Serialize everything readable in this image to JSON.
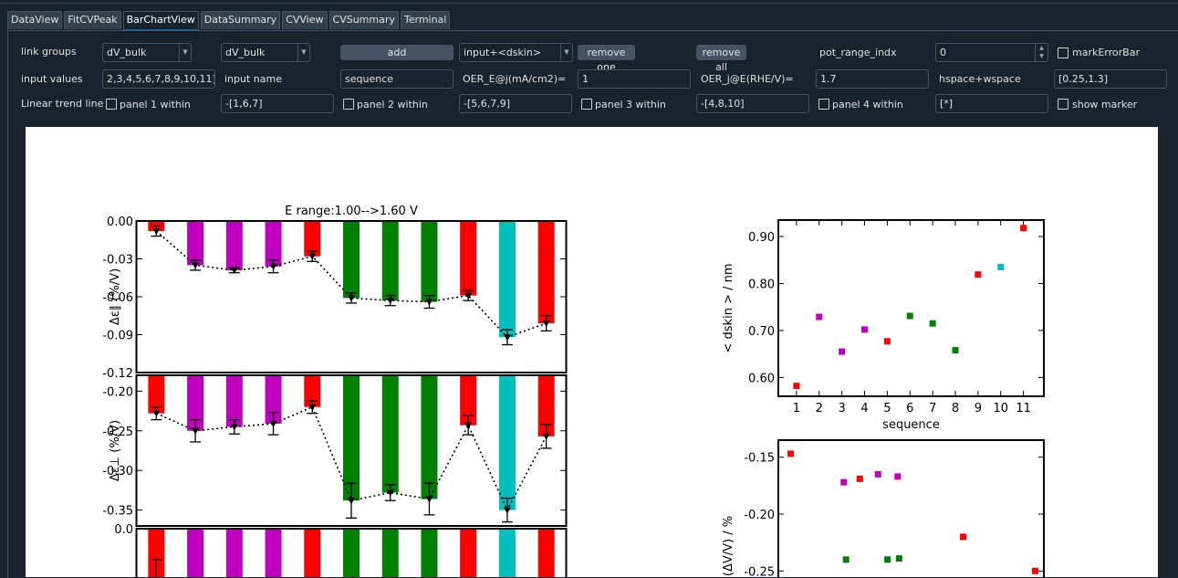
{
  "tabs": [
    {
      "label": "DataView",
      "active": false
    },
    {
      "label": "FitCVPeak",
      "active": false
    },
    {
      "label": "BarChartView",
      "active": true
    },
    {
      "label": "DataSummary",
      "active": false
    },
    {
      "label": "CVView",
      "active": false
    },
    {
      "label": "CVSummary",
      "active": false
    },
    {
      "label": "Terminal",
      "active": false
    }
  ],
  "controls": {
    "link_groups_label": "link groups",
    "link_group_1": "dV_bulk",
    "link_group_2": "dV_bulk",
    "add_button": "add",
    "input_combo": "input+<dskin>",
    "remove_one_button": "remove one",
    "remove_all_button": "remove all",
    "pot_range_label": "pot_range_indx",
    "pot_range_value": "0",
    "mark_error_bar_label": "markErrorBar",
    "input_values_label": "input values",
    "input_values": "2,3,4,5,6,7,8,9,10,11]",
    "input_name_label": "input name",
    "input_name": "sequence",
    "oer_e_label": "OER_E@j(mA/cm2)=",
    "oer_e_value": "1",
    "oer_j_label": "OER_j@E(RHE/V)=",
    "oer_j_value": "1.7",
    "hspace_label": "hspace+wspace",
    "hspace_value": "[0.25,1.3]",
    "trend_label": "Linear trend line",
    "panel1_label": "panel 1 within",
    "panel1_value": "-[1,6,7]",
    "panel2_label": "panel 2 within",
    "panel2_value": "-[5,6,7,9]",
    "panel3_label": "panel 3 within",
    "panel3_value": "-[4,8,10]",
    "panel4_label": "panel 4 within",
    "panel4_value": "[*]",
    "show_marker_label": "show marker"
  },
  "colors": {
    "red": "#ff0000",
    "magenta": "#bf00bf",
    "green": "#008000",
    "cyan": "#00bfbf",
    "bg": "#19232d"
  },
  "chart_data": [
    {
      "type": "bar",
      "title": "E range:1.00-->1.60 V",
      "ylabel": "Δε∥ (%/V)",
      "ylim": [
        -0.12,
        0.0
      ],
      "yticks": [
        "0.00",
        "-0.03",
        "-0.06",
        "-0.09",
        "-0.12"
      ],
      "colors": [
        "red",
        "magenta",
        "magenta",
        "magenta",
        "red",
        "green",
        "green",
        "green",
        "red",
        "cyan",
        "red"
      ],
      "values": [
        -0.008,
        -0.035,
        -0.039,
        -0.036,
        -0.028,
        -0.061,
        -0.063,
        -0.064,
        -0.059,
        -0.092,
        -0.081
      ],
      "errors": [
        0.004,
        0.004,
        0.002,
        0.005,
        0.004,
        0.004,
        0.004,
        0.005,
        0.004,
        0.006,
        0.006
      ]
    },
    {
      "type": "bar",
      "ylabel": "Δε⊥ (%/V)",
      "ylim": [
        -0.37,
        -0.18
      ],
      "yticks": [
        "-0.20",
        "-0.25",
        "-0.30",
        "-0.35"
      ],
      "colors": [
        "red",
        "magenta",
        "magenta",
        "magenta",
        "red",
        "green",
        "green",
        "green",
        "red",
        "cyan",
        "red"
      ],
      "values": [
        -0.228,
        -0.25,
        -0.245,
        -0.241,
        -0.22,
        -0.338,
        -0.328,
        -0.336,
        -0.243,
        -0.35,
        -0.257
      ],
      "errors": [
        0.008,
        0.014,
        0.009,
        0.014,
        0.008,
        0.022,
        0.01,
        0.02,
        0.012,
        0.015,
        0.015
      ]
    },
    {
      "type": "bar",
      "ylabel": "",
      "ylim": [
        -0.1,
        0.0
      ],
      "yticks": [
        "0.0"
      ],
      "colors": [
        "red",
        "magenta",
        "magenta",
        "magenta",
        "red",
        "green",
        "green",
        "green",
        "red",
        "cyan",
        "red"
      ],
      "values": [
        -0.1,
        -0.1,
        -0.1,
        -0.1,
        -0.1,
        -0.1,
        -0.1,
        -0.1,
        -0.1,
        -0.1,
        -0.1
      ],
      "errors": [
        0.05,
        0,
        0,
        0,
        0,
        0,
        0,
        0,
        0,
        0,
        0
      ]
    },
    {
      "type": "scatter",
      "xlabel": "sequence",
      "ylabel": "< dskin > / nm",
      "xlim": [
        0.2,
        11.9
      ],
      "ylim": [
        0.56,
        0.935
      ],
      "xticks": [
        "1",
        "2",
        "3",
        "4",
        "5",
        "6",
        "7",
        "8",
        "9",
        "10",
        "11"
      ],
      "yticks": [
        "0.60",
        "0.70",
        "0.80",
        "0.90"
      ],
      "points": [
        {
          "x": 1,
          "y": 0.582,
          "c": "red"
        },
        {
          "x": 2,
          "y": 0.729,
          "c": "magenta"
        },
        {
          "x": 3,
          "y": 0.655,
          "c": "magenta"
        },
        {
          "x": 4,
          "y": 0.702,
          "c": "magenta"
        },
        {
          "x": 5,
          "y": 0.677,
          "c": "red"
        },
        {
          "x": 6,
          "y": 0.731,
          "c": "green"
        },
        {
          "x": 7,
          "y": 0.715,
          "c": "green"
        },
        {
          "x": 8,
          "y": 0.658,
          "c": "green"
        },
        {
          "x": 9,
          "y": 0.819,
          "c": "red"
        },
        {
          "x": 10,
          "y": 0.835,
          "c": "cyan"
        },
        {
          "x": 11,
          "y": 0.918,
          "c": "red"
        }
      ]
    },
    {
      "type": "scatter",
      "ylabel": "(ΔV/V) / %",
      "ylim": [
        -0.265,
        -0.135
      ],
      "yticks": [
        "-0.15",
        "-0.20",
        "-0.25"
      ],
      "points": [
        {
          "x": 0.582,
          "y": -0.147,
          "c": "red"
        },
        {
          "x": 0.655,
          "y": -0.172,
          "c": "magenta"
        },
        {
          "x": 0.658,
          "y": -0.24,
          "c": "green"
        },
        {
          "x": 0.677,
          "y": -0.169,
          "c": "red"
        },
        {
          "x": 0.702,
          "y": -0.165,
          "c": "magenta"
        },
        {
          "x": 0.715,
          "y": -0.24,
          "c": "green"
        },
        {
          "x": 0.729,
          "y": -0.167,
          "c": "magenta"
        },
        {
          "x": 0.731,
          "y": -0.239,
          "c": "green"
        },
        {
          "x": 0.819,
          "y": -0.22,
          "c": "red"
        },
        {
          "x": 0.918,
          "y": -0.25,
          "c": "red"
        }
      ]
    }
  ]
}
